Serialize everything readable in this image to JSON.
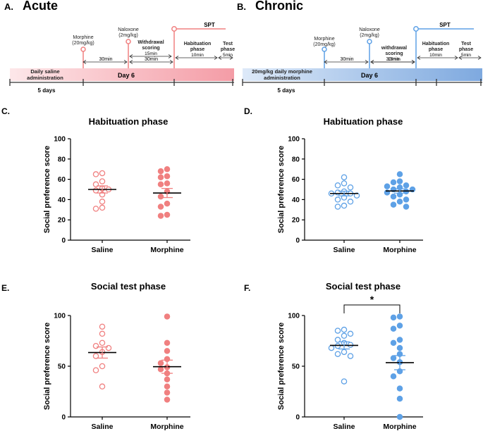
{
  "timeline_acute": {
    "label": "A.",
    "title": "Acute",
    "base_text": [
      "Daily saline",
      "administration"
    ],
    "duration": "5 days",
    "day": "Day 6",
    "morphine": [
      "Morphine",
      "(20mg/kg)"
    ],
    "naloxone": [
      "Naloxone",
      "(2mg/kg)"
    ],
    "withdrawal": [
      "Withdrawal",
      "scoring",
      "15min"
    ],
    "habituation": [
      "Habituation",
      "phase",
      "10min"
    ],
    "test": [
      "Test",
      "phase",
      "5min"
    ],
    "interval1": "30min",
    "interval2": "30min",
    "spt": "SPT"
  },
  "timeline_chronic": {
    "label": "B.",
    "title": "Chronic",
    "base_text": [
      "20mg/kg daily morphine",
      "administration"
    ],
    "duration": "5 days",
    "day": "Day 6",
    "morphine": [
      "Morphine",
      "(20mg/kg)"
    ],
    "naloxone": [
      "Naloxone",
      "(2mg/kg)"
    ],
    "withdrawal": [
      "withdrawal",
      "scoring",
      "15min"
    ],
    "habituation": [
      "Habituation",
      "phase",
      "10min"
    ],
    "test": [
      "Test",
      "phase",
      "5min"
    ],
    "interval1": "30min",
    "interval2": "30min",
    "spt": "SPT"
  },
  "colors": {
    "acute": "#f08080",
    "chronic": "#5ea1e6",
    "acute_band_start": "#fde7e9",
    "acute_band_end": "#f49ca6",
    "chronic_band_start": "#dde9f8",
    "chronic_band_end": "#7ea9df"
  },
  "chart_data": [
    {
      "panel": "C.",
      "type": "scatter",
      "title": "Habituation phase",
      "ylabel": "Social preference score",
      "ylim": [
        0,
        100
      ],
      "yticks": [
        0,
        20,
        40,
        60,
        80,
        100
      ],
      "categories": [
        "Saline",
        "Morphine"
      ],
      "series": [
        {
          "values": [
            66,
            65,
            58,
            55,
            51,
            50,
            49,
            45,
            38,
            32,
            31
          ],
          "mean": 50,
          "sem": 3.5
        },
        {
          "values": [
            70,
            68,
            63,
            62,
            56,
            55,
            48,
            43,
            36,
            33,
            25,
            24
          ],
          "mean": 46.5,
          "sem": 4.5
        }
      ]
    },
    {
      "panel": "D.",
      "type": "scatter",
      "title": "Habituation phase",
      "ylabel": "Social preference score",
      "ylim": [
        0,
        100
      ],
      "yticks": [
        0,
        20,
        40,
        60,
        80,
        100
      ],
      "categories": [
        "Saline",
        "Morphine"
      ],
      "series": [
        {
          "values": [
            62,
            56,
            54,
            52,
            48,
            47,
            46,
            46,
            44,
            42,
            40,
            38,
            34,
            33
          ],
          "mean": 46,
          "sem": 2.3
        },
        {
          "values": [
            65,
            58,
            57,
            54,
            53,
            52,
            50,
            50,
            48,
            47,
            45,
            43,
            40,
            38,
            35,
            33
          ],
          "mean": 48.5,
          "sem": 2.1
        }
      ]
    },
    {
      "panel": "E.",
      "type": "scatter",
      "title": "Social test phase",
      "ylabel": "Social preference score",
      "ylim": [
        0,
        100
      ],
      "yticks": [
        0,
        50,
        100
      ],
      "categories": [
        "Saline",
        "Morphine"
      ],
      "series": [
        {
          "values": [
            89,
            82,
            73,
            70,
            68,
            64,
            60,
            50,
            46,
            30
          ],
          "mean": 63.5,
          "sem": 5.5
        },
        {
          "values": [
            99,
            73,
            65,
            57,
            53,
            49,
            47,
            43,
            37,
            30,
            24,
            17
          ],
          "mean": 49.5,
          "sem": 6.5
        }
      ]
    },
    {
      "panel": "F.",
      "type": "scatter",
      "title": "Social test phase",
      "ylabel": "Social preference score",
      "ylim": [
        0,
        100
      ],
      "yticks": [
        0,
        50,
        100
      ],
      "categories": [
        "Saline",
        "Morphine"
      ],
      "significance": "*",
      "series": [
        {
          "values": [
            86,
            85,
            82,
            80,
            76,
            73,
            71,
            70,
            68,
            64,
            62,
            60,
            35
          ],
          "mean": 70.5,
          "sem": 3.5
        },
        {
          "values": [
            99,
            98,
            90,
            87,
            76,
            73,
            68,
            62,
            58,
            54,
            45,
            40,
            28,
            18,
            0
          ],
          "mean": 53.5,
          "sem": 7
        }
      ]
    }
  ]
}
